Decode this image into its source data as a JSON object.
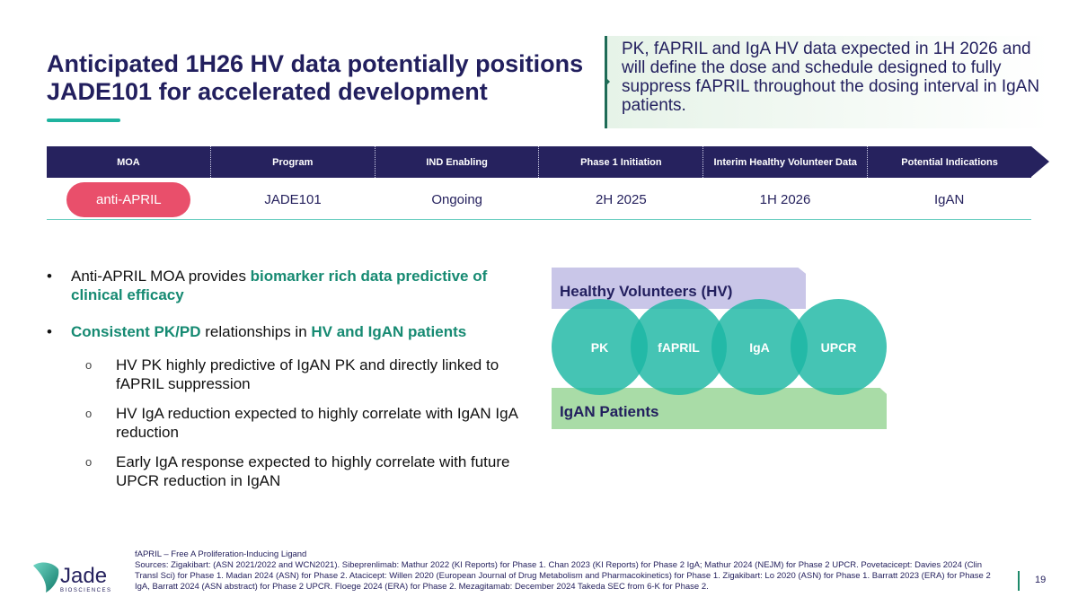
{
  "title": "Anticipated 1H26 HV data potentially positions JADE101 for accelerated development",
  "callout": "PK, fAPRIL and IgA HV data expected in 1H 2026 and will define the dose and schedule designed to fully suppress fAPRIL throughout the dosing interval in IgAN patients.",
  "table": {
    "headers": [
      "MOA",
      "Program",
      "IND Enabling",
      "Phase 1 Initiation",
      "Interim Healthy Volunteer Data",
      "Potential Indications"
    ],
    "row": [
      "anti-APRIL",
      "JADE101",
      "Ongoing",
      "2H 2025",
      "1H 2026",
      "IgAN"
    ]
  },
  "bullets": {
    "b1": {
      "t1": "Anti-APRIL MOA provides ",
      "h1": "biomarker rich data predictive of clinical efficacy"
    },
    "b2": {
      "h1": "Consistent PK/PD",
      "t1": " relationships in ",
      "h2": "HV and IgAN patients"
    },
    "subs": [
      "HV PK highly predictive of IgAN PK and directly linked to fAPRIL suppression",
      "HV IgA reduction expected to highly correlate with IgAN IgA reduction",
      "Early IgA response expected to highly correlate with future UPCR reduction in IgAN"
    ]
  },
  "diagram": {
    "top_label": "Healthy Volunteers (HV)",
    "bottom_label": "IgAN Patients",
    "circles": [
      "PK",
      "fAPRIL",
      "IgA",
      "UPCR"
    ]
  },
  "footer": {
    "definition": "fAPRIL – Free A Proliferation-Inducing Ligand",
    "sources": "Sources: Zigakibart: (ASN 2021/2022 and WCN2021). Sibeprenlimab: Mathur 2022 (KI Reports) for Phase 1. Chan 2023 (KI Reports) for Phase 2 IgA; Mathur 2024 (NEJM) for Phase 2 UPCR. Povetacicept: Davies 2024 (Clin Transl Sci) for Phase 1. Madan 2024 (ASN) for Phase 2. Atacicept: Willen 2020 (European Journal of Drug Metabolism and Pharmacokinetics) for Phase 1. Zigakibart: Lo 2020 (ASN) for Phase 1. Barratt 2023 (ERA) for Phase 2 IgA, Barratt 2024 (ASN abstract) for Phase 2 UPCR. Floege 2024 (ERA) for Phase 2. Mezagitamab: December 2024 Takeda SEC from 6-K for Phase 2.",
    "page": "19"
  },
  "logo": {
    "name": "Jade",
    "sub": "BIOSCIENCES"
  },
  "colors": {
    "navy": "#26225e",
    "teal": "#1fb39f",
    "pink": "#e94f6b",
    "green_text": "#168a72"
  }
}
